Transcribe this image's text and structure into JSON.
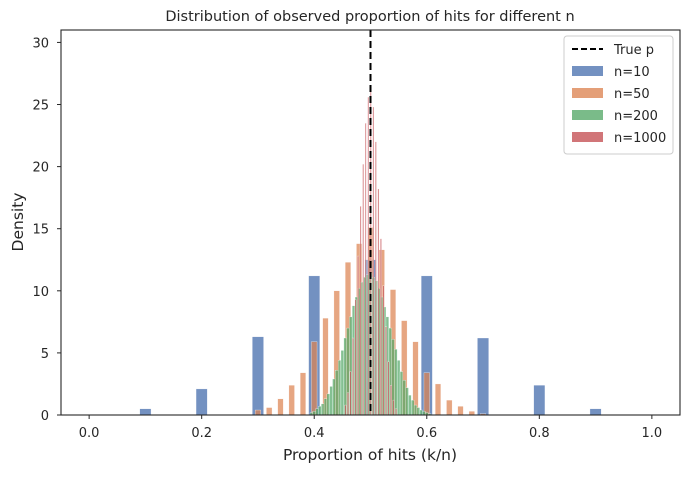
{
  "chart_data": {
    "type": "bar",
    "title": "Distribution of observed proportion of hits for different n",
    "xlabel": "Proportion of hits (k/n)",
    "ylabel": "Density",
    "xlim": [
      -0.05,
      1.05
    ],
    "ylim": [
      0,
      31
    ],
    "x_ticks": [
      "0.0",
      "0.2",
      "0.4",
      "0.6",
      "0.8",
      "1.0"
    ],
    "y_ticks": [
      "0",
      "5",
      "10",
      "15",
      "20",
      "25",
      "30"
    ],
    "grid": false,
    "legend_position": "top-right",
    "reference_line": {
      "name": "True p",
      "x": 0.5,
      "style": "dashed",
      "color": "#000000"
    },
    "series": [
      {
        "name": "n=10",
        "color": "#4c72b0",
        "bin_width": 0.02,
        "x": [
          0.1,
          0.2,
          0.3,
          0.4,
          0.5,
          0.6,
          0.7,
          0.8,
          0.9
        ],
        "values": [
          0.5,
          2.1,
          6.3,
          11.2,
          12.5,
          11.2,
          6.2,
          2.4,
          0.5
        ]
      },
      {
        "name": "n=50",
        "color": "#dd8452",
        "bin_width": 0.01,
        "x": [
          0.3,
          0.32,
          0.34,
          0.36,
          0.38,
          0.4,
          0.42,
          0.44,
          0.46,
          0.48,
          0.5,
          0.52,
          0.54,
          0.56,
          0.58,
          0.6,
          0.62,
          0.64,
          0.66,
          0.68,
          0.7
        ],
        "values": [
          0.4,
          0.6,
          1.3,
          2.4,
          3.4,
          5.9,
          7.8,
          10.0,
          12.3,
          13.8,
          15.1,
          13.3,
          10.1,
          7.6,
          5.9,
          3.4,
          2.5,
          1.2,
          0.7,
          0.3,
          0.1
        ]
      },
      {
        "name": "n=200",
        "color": "#55a868",
        "bin_width": 0.005,
        "x": [
          0.395,
          0.4,
          0.405,
          0.41,
          0.415,
          0.42,
          0.425,
          0.43,
          0.435,
          0.44,
          0.445,
          0.45,
          0.455,
          0.46,
          0.465,
          0.47,
          0.475,
          0.48,
          0.485,
          0.49,
          0.495,
          0.5,
          0.505,
          0.51,
          0.515,
          0.52,
          0.525,
          0.53,
          0.535,
          0.54,
          0.545,
          0.55,
          0.555,
          0.56,
          0.565,
          0.57,
          0.575,
          0.58,
          0.585,
          0.59,
          0.595,
          0.6,
          0.605
        ],
        "values": [
          0.2,
          0.3,
          0.5,
          0.7,
          0.9,
          1.3,
          1.7,
          2.3,
          2.9,
          3.6,
          4.4,
          5.2,
          6.2,
          7.0,
          7.9,
          8.8,
          9.5,
          10.2,
          10.7,
          11.1,
          11.3,
          11.4,
          11.1,
          10.8,
          10.2,
          9.5,
          8.7,
          7.9,
          7.0,
          6.1,
          5.3,
          4.4,
          3.5,
          2.8,
          2.2,
          1.6,
          1.2,
          0.8,
          0.6,
          0.4,
          0.3,
          0.2,
          0.1
        ]
      },
      {
        "name": "n=1000",
        "color": "#c44e52",
        "bin_width": 0.00225,
        "x": [
          0.4555,
          0.46,
          0.4645,
          0.469,
          0.4735,
          0.478,
          0.4825,
          0.487,
          0.4915,
          0.496,
          0.5005,
          0.505,
          0.5095,
          0.514,
          0.5185,
          0.523,
          0.5275,
          0.532,
          0.5365,
          0.541,
          0.5455
        ],
        "values": [
          0.8,
          1.8,
          3.5,
          6.2,
          9.3,
          12.8,
          16.8,
          20.2,
          23.5,
          25.6,
          26.5,
          24.8,
          22.0,
          18.2,
          14.2,
          10.4,
          7.1,
          4.3,
          2.4,
          1.2,
          0.5
        ]
      }
    ]
  }
}
